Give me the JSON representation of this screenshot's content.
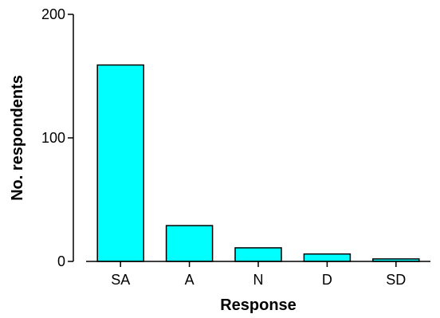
{
  "chart_data": {
    "type": "bar",
    "title": "",
    "xlabel": "Response",
    "ylabel": "No. respondents",
    "categories": [
      "SA",
      "A",
      "N",
      "D",
      "SD"
    ],
    "values": [
      159,
      29,
      11,
      6,
      2
    ],
    "ylim": [
      0,
      200
    ],
    "yticks": [
      0,
      100,
      200
    ],
    "grid": false,
    "legend": "none",
    "bar_color": "#00FFFF",
    "bar_edge_color": "#000000"
  }
}
